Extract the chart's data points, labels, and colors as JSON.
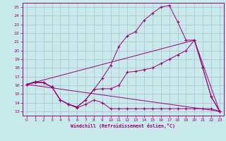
{
  "background_color": "#c8eaea",
  "grid_color": "#b0b8d8",
  "line_color": "#990077",
  "xlabel": "Windchill (Refroidissement éolien,°C)",
  "xlim": [
    -0.5,
    23.5
  ],
  "ylim": [
    12.5,
    25.5
  ],
  "yticks": [
    13,
    14,
    15,
    16,
    17,
    18,
    19,
    20,
    21,
    22,
    23,
    24,
    25
  ],
  "xticks": [
    0,
    1,
    2,
    3,
    4,
    5,
    6,
    7,
    8,
    9,
    10,
    11,
    12,
    13,
    14,
    15,
    16,
    17,
    18,
    19,
    20,
    21,
    22,
    23
  ],
  "series": [
    {
      "x": [
        0,
        1,
        2,
        3,
        4,
        5,
        6,
        7,
        8,
        9,
        10,
        11,
        12,
        13,
        14,
        15,
        16,
        17,
        18,
        19,
        20,
        21,
        22,
        23
      ],
      "y": [
        16.1,
        16.3,
        16.3,
        15.8,
        14.3,
        13.8,
        13.4,
        13.8,
        14.3,
        14.0,
        13.3,
        13.3,
        13.3,
        13.3,
        13.3,
        13.3,
        13.3,
        13.3,
        13.3,
        13.3,
        13.3,
        13.3,
        13.3,
        13.0
      ],
      "marker": true
    },
    {
      "x": [
        0,
        1,
        2,
        3,
        4,
        5,
        6,
        7,
        8,
        9,
        10,
        11,
        12,
        13,
        14,
        15,
        16,
        17,
        18,
        19,
        20,
        21,
        22,
        23
      ],
      "y": [
        16.1,
        16.4,
        16.3,
        15.8,
        14.3,
        13.8,
        13.5,
        14.3,
        15.5,
        15.6,
        15.6,
        16.0,
        17.5,
        17.6,
        17.8,
        18.0,
        18.5,
        19.0,
        19.5,
        20.0,
        21.2,
        18.0,
        14.7,
        13.0
      ],
      "marker": true
    },
    {
      "x": [
        0,
        1,
        2,
        3,
        4,
        5,
        6,
        7,
        8,
        9,
        10,
        11,
        12,
        13,
        14,
        15,
        16,
        17,
        18,
        19,
        20,
        21,
        22,
        23
      ],
      "y": [
        16.1,
        16.4,
        16.3,
        15.8,
        14.3,
        13.8,
        13.5,
        14.3,
        15.5,
        16.8,
        18.3,
        20.5,
        21.7,
        22.2,
        23.5,
        24.3,
        25.0,
        25.2,
        23.3,
        21.2,
        21.2,
        18.0,
        14.7,
        13.0
      ],
      "marker": true
    },
    {
      "x": [
        0,
        23
      ],
      "y": [
        16.1,
        13.0
      ],
      "marker": false
    },
    {
      "x": [
        0,
        20,
        23
      ],
      "y": [
        16.1,
        21.2,
        13.0
      ],
      "marker": false
    }
  ]
}
